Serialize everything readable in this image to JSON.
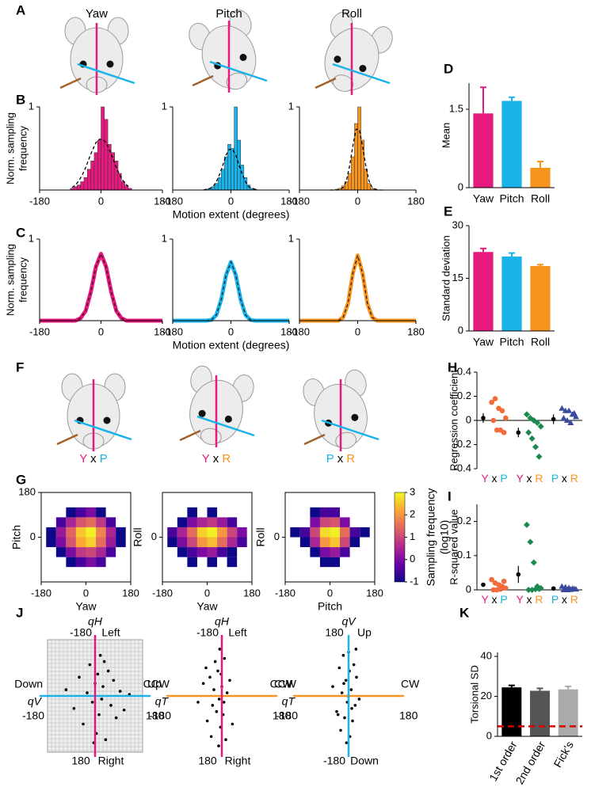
{
  "figure": {
    "panel_letters": [
      "A",
      "B",
      "C",
      "D",
      "E",
      "F",
      "G",
      "H",
      "I",
      "J",
      "K"
    ],
    "head_titles": [
      "Yaw",
      "Pitch",
      "Roll"
    ],
    "head_colors": [
      "#e6197f",
      "#19b3ea",
      "#f7941e"
    ],
    "pair_titles": [
      "Y x P",
      "Y x R",
      "P x R"
    ],
    "letter_colors": {
      "Y": "#e6197f",
      "P": "#19b3ea",
      "R": "#f7941e"
    }
  },
  "chart_data": [
    {
      "type": "histogram",
      "color": "#e6197f",
      "ylabel": [
        "Norm. sampling",
        "frequency"
      ],
      "bins": [
        -90,
        -80,
        -70,
        -60,
        -50,
        -40,
        -30,
        -20,
        -10,
        0,
        10,
        20,
        30,
        40,
        50,
        60,
        70,
        80,
        90
      ],
      "values": [
        0.02,
        0.04,
        0.06,
        0.1,
        0.15,
        0.25,
        0.35,
        0.45,
        0.6,
        1,
        0.85,
        0.55,
        0.45,
        0.35,
        0.2,
        0.1,
        0.05,
        0.02
      ],
      "fit": [
        0.03,
        0.06,
        0.11,
        0.18,
        0.27,
        0.38,
        0.48,
        0.57,
        0.61,
        0.61,
        0.57,
        0.48,
        0.38,
        0.27,
        0.18,
        0.11,
        0.06,
        0.03
      ],
      "xlim": [
        -180,
        180
      ],
      "xticks": [
        -180,
        0,
        180
      ],
      "ylim": [
        0,
        1
      ],
      "yticks": [
        1
      ]
    },
    {
      "type": "histogram",
      "color": "#19b3ea",
      "xlabel": "Motion extent (degrees)",
      "bins": [
        -90,
        -80,
        -70,
        -60,
        -50,
        -40,
        -30,
        -20,
        -10,
        0,
        10,
        20,
        30,
        40,
        50,
        60,
        70,
        80,
        90
      ],
      "values": [
        0,
        0.01,
        0.02,
        0.04,
        0.08,
        0.15,
        0.25,
        0.4,
        0.55,
        0.5,
        1,
        0.6,
        0.3,
        0.15,
        0.06,
        0.02,
        0.01,
        0
      ],
      "fit": [
        0,
        0.01,
        0.02,
        0.04,
        0.1,
        0.19,
        0.3,
        0.42,
        0.49,
        0.49,
        0.42,
        0.3,
        0.19,
        0.1,
        0.04,
        0.02,
        0.01,
        0
      ],
      "xlim": [
        -180,
        180
      ],
      "xticks": [
        -180,
        0,
        180
      ],
      "ylim": [
        0,
        1
      ],
      "yticks": [
        1
      ]
    },
    {
      "type": "histogram",
      "color": "#f7941e",
      "bins": [
        -90,
        -80,
        -70,
        -60,
        -50,
        -40,
        -30,
        -20,
        -10,
        0,
        10,
        20,
        30,
        40,
        50,
        60,
        70,
        80,
        90
      ],
      "values": [
        0,
        0,
        0.01,
        0.02,
        0.05,
        0.1,
        0.2,
        0.4,
        0.8,
        1,
        0.6,
        0.25,
        0.08,
        0.02,
        0.01,
        0,
        0,
        0
      ],
      "fit": [
        0,
        0,
        0,
        0.01,
        0.03,
        0.11,
        0.29,
        0.53,
        0.73,
        0.73,
        0.53,
        0.29,
        0.11,
        0.03,
        0.01,
        0,
        0,
        0
      ],
      "xlim": [
        -180,
        180
      ],
      "xticks": [
        -180,
        0,
        180
      ],
      "ylim": [
        0,
        1
      ],
      "yticks": [
        1
      ]
    },
    {
      "type": "line",
      "color": "#e6197f",
      "ylabel": [
        "Norm. sampling",
        "frequency"
      ],
      "x": [
        -180,
        -90,
        -75,
        -60,
        -45,
        -30,
        -15,
        0,
        15,
        30,
        45,
        60,
        75,
        90,
        180
      ],
      "values": [
        0,
        0,
        0,
        0.03,
        0.12,
        0.35,
        0.66,
        0.82,
        0.66,
        0.35,
        0.12,
        0.03,
        0,
        0,
        0
      ],
      "xlim": [
        -180,
        180
      ],
      "xticks": [
        -180,
        0,
        180
      ],
      "ylim": [
        0,
        1
      ],
      "yticks": [
        1
      ]
    },
    {
      "type": "line",
      "color": "#19b3ea",
      "xlabel": "Motion extent (degrees)",
      "x": [
        -180,
        -90,
        -75,
        -60,
        -45,
        -30,
        -15,
        0,
        15,
        30,
        45,
        60,
        75,
        90,
        180
      ],
      "values": [
        0,
        0,
        0,
        0.01,
        0.07,
        0.26,
        0.56,
        0.72,
        0.56,
        0.26,
        0.07,
        0.01,
        0,
        0,
        0
      ],
      "xlim": [
        -180,
        180
      ],
      "xticks": [
        -180,
        0,
        180
      ],
      "ylim": [
        0,
        1
      ],
      "yticks": [
        1
      ]
    },
    {
      "type": "line",
      "color": "#f7941e",
      "x": [
        -180,
        -90,
        -75,
        -60,
        -45,
        -30,
        -15,
        0,
        15,
        30,
        45,
        60,
        75,
        90,
        180
      ],
      "values": [
        0,
        0,
        0,
        0,
        0.04,
        0.21,
        0.58,
        0.8,
        0.58,
        0.21,
        0.04,
        0,
        0,
        0,
        0
      ],
      "xlim": [
        -180,
        180
      ],
      "xticks": [
        -180,
        0,
        180
      ],
      "ylim": [
        0,
        1
      ],
      "yticks": [
        1
      ]
    },
    {
      "type": "bar",
      "ylabel": "Mean",
      "categories": [
        "Yaw",
        "Pitch",
        "Roll"
      ],
      "values": [
        1.42,
        1.66,
        0.38
      ],
      "errors": [
        0.5,
        0.07,
        0.12
      ],
      "colors": [
        "#e6197f",
        "#19b3ea",
        "#f7941e"
      ],
      "ylim": [
        0,
        2
      ],
      "yticks": [
        0,
        1.5
      ]
    },
    {
      "type": "bar",
      "ylabel": "Standard deviation",
      "categories": [
        "Yaw",
        "Pitch",
        "Roll"
      ],
      "values": [
        22.5,
        21.2,
        18.5
      ],
      "errors": [
        1,
        1,
        0.4
      ],
      "colors": [
        "#e6197f",
        "#19b3ea",
        "#f7941e"
      ],
      "ylim": [
        0,
        30
      ],
      "yticks": [
        0,
        15,
        30
      ]
    },
    {
      "type": "heatmap",
      "xlabel": "Yaw",
      "ylabel": "Pitch",
      "xlabel_color": "#e6197f",
      "ylabel_color": "#19b3ea",
      "xbins": [
        -160,
        -120,
        -80,
        -40,
        0,
        40,
        80,
        120,
        160
      ],
      "ybins": [
        -160,
        -120,
        -80,
        -40,
        0,
        40,
        80,
        120,
        160
      ],
      "z": [
        [
          null,
          null,
          null,
          null,
          null,
          null,
          null,
          null
        ],
        [
          null,
          null,
          -1,
          -0.5,
          0,
          -0.5,
          null,
          null
        ],
        [
          null,
          -1,
          0,
          0.8,
          1,
          0.5,
          -0.5,
          null
        ],
        [
          -1,
          0,
          1.2,
          2.2,
          2.6,
          1.5,
          0.3,
          -1
        ],
        [
          -1,
          0.3,
          1.4,
          2.5,
          2.9,
          1.8,
          0.5,
          -1
        ],
        [
          null,
          -0.5,
          0.5,
          1.2,
          1.5,
          0.8,
          -0.5,
          null
        ],
        [
          null,
          null,
          -1,
          -0.5,
          0,
          -1,
          null,
          null
        ],
        [
          null,
          null,
          null,
          null,
          null,
          null,
          null,
          null
        ]
      ],
      "xlim": [
        -180,
        180
      ],
      "ylim": [
        -180,
        180
      ],
      "xticks": [
        -180,
        0,
        180
      ],
      "yticks": [
        0,
        180
      ],
      "colormap": [
        "#0d0887",
        "#6a00a8",
        "#b12a90",
        "#e16462",
        "#fca636",
        "#f0f921"
      ],
      "clim": [
        -1,
        3
      ]
    },
    {
      "type": "heatmap",
      "xlabel": "Yaw",
      "ylabel": "Roll",
      "xlabel_color": "#e6197f",
      "ylabel_color": "#f7941e",
      "xbins": [
        -160,
        -120,
        -80,
        -40,
        0,
        40,
        80,
        120,
        160
      ],
      "ybins": [
        -160,
        -120,
        -80,
        -40,
        0,
        40,
        80,
        120,
        160
      ],
      "z": [
        [
          null,
          null,
          null,
          null,
          null,
          null,
          null,
          null
        ],
        [
          null,
          null,
          -1,
          null,
          -1,
          null,
          -1,
          null
        ],
        [
          null,
          -1,
          -0.5,
          0,
          0.3,
          -0.5,
          -1,
          null
        ],
        [
          -1,
          0,
          1,
          2,
          2.4,
          1.5,
          0.5,
          -0.5
        ],
        [
          -0.5,
          0.5,
          1.5,
          2.6,
          2.9,
          2,
          1,
          0
        ],
        [
          null,
          -1,
          0,
          0.5,
          0.8,
          0.3,
          -0.5,
          null
        ],
        [
          null,
          null,
          -1,
          null,
          -1,
          null,
          null,
          null
        ],
        [
          null,
          null,
          null,
          null,
          null,
          null,
          null,
          null
        ]
      ],
      "xlim": [
        -180,
        180
      ],
      "ylim": [
        -180,
        180
      ],
      "xticks": [
        -180,
        0,
        180
      ],
      "yticks": [
        0
      ],
      "colormap": [
        "#0d0887",
        "#6a00a8",
        "#b12a90",
        "#e16462",
        "#fca636",
        "#f0f921"
      ],
      "clim": [
        -1,
        3
      ]
    },
    {
      "type": "heatmap",
      "xlabel": "Pitch",
      "ylabel": "Roll",
      "xlabel_color": "#19b3ea",
      "ylabel_color": "#f7941e",
      "xbins": [
        -160,
        -120,
        -80,
        -40,
        0,
        40,
        80,
        120,
        160
      ],
      "ybins": [
        -160,
        -120,
        -80,
        -40,
        0,
        40,
        80,
        120,
        160
      ],
      "z": [
        [
          null,
          null,
          null,
          null,
          null,
          null,
          null,
          null
        ],
        [
          null,
          null,
          null,
          -1,
          -1,
          null,
          null,
          null
        ],
        [
          null,
          null,
          -1,
          0,
          0.3,
          -0.5,
          null,
          null
        ],
        [
          null,
          -1,
          0.5,
          2,
          2.5,
          1,
          -1,
          null
        ],
        [
          -1,
          -0.5,
          1,
          2.7,
          2.9,
          1.5,
          -0.5,
          -1
        ],
        [
          null,
          null,
          0,
          1,
          1.2,
          0,
          null,
          null
        ],
        [
          null,
          null,
          -1,
          -0.5,
          -0.5,
          null,
          null,
          null
        ],
        [
          null,
          null,
          null,
          null,
          null,
          null,
          null,
          null
        ]
      ],
      "xlim": [
        -180,
        180
      ],
      "ylim": [
        -180,
        180
      ],
      "xticks": [
        -180,
        0,
        180
      ],
      "yticks": [
        0
      ],
      "colormap": [
        "#0d0887",
        "#6a00a8",
        "#b12a90",
        "#e16462",
        "#fca636",
        "#f0f921"
      ],
      "clim": [
        -1,
        3
      ],
      "cticks": [
        -1,
        0,
        1,
        2,
        3
      ],
      "clabel": [
        "Sampling frequency",
        "(log10)"
      ]
    },
    {
      "type": "strip",
      "ylabel": "Regression coefficient",
      "categories": [
        "Y x P",
        "Y x R",
        "P x R"
      ],
      "means": [
        0.02,
        -0.1,
        0.01
      ],
      "errors": [
        0.04,
        0.04,
        0.04
      ],
      "points": [
        [
          0.15,
          0.18,
          0.1,
          0.08,
          0.02,
          0,
          -0.08,
          -0.08,
          -0.1
        ],
        [
          0.05,
          0.02,
          0,
          -0.02,
          -0.05,
          -0.1,
          -0.15,
          -0.22,
          -0.3
        ],
        [
          0.1,
          0.08,
          0.08,
          0.05,
          0.03,
          0.02,
          0,
          -0.02,
          0.06
        ]
      ],
      "point_colors": [
        "#f26b3a",
        "#1a8a4f",
        "#3a4aa0"
      ],
      "markers": [
        "circle",
        "diamond",
        "triangle"
      ],
      "ylim": [
        -0.4,
        0.4
      ],
      "yticks": [
        -0.4,
        -0.2,
        0,
        0.2,
        0.4
      ]
    },
    {
      "type": "strip",
      "ylabel": "R-squared value",
      "categories": [
        "Y x P",
        "Y x R",
        "P x R"
      ],
      "means": [
        0.015,
        0.045,
        0.004
      ],
      "errors": [
        0.005,
        0.025,
        0.002
      ],
      "points": [
        [
          0.03,
          0.02,
          0.015,
          0.01,
          0.005,
          0,
          0,
          0.002,
          0.025
        ],
        [
          0.19,
          0.14,
          0.08,
          0.01,
          0.005,
          0,
          0,
          0.002,
          0.003
        ],
        [
          0.01,
          0.008,
          0.006,
          0.004,
          0.002,
          0,
          0,
          0.001,
          0.003
        ]
      ],
      "point_colors": [
        "#f26b3a",
        "#1a8a4f",
        "#3a4aa0"
      ],
      "markers": [
        "circle",
        "diamond",
        "triangle"
      ],
      "ylim": [
        0,
        0.25
      ],
      "yticks": [
        0,
        0.1,
        0.2
      ]
    },
    {
      "type": "scatter",
      "grid": true,
      "h_color": "#19b3ea",
      "v_color": "#e6197f",
      "labels": {
        "top_label": "qH",
        "top_tick": "-180",
        "top_dir": "Left",
        "bottom_tick": "180",
        "bottom_dir": "Right",
        "left_dir": "Down",
        "left_label": "qV",
        "left_tick": "-180",
        "right_dir": "Up",
        "right_tick": "180"
      },
      "x": [
        -110,
        -80,
        -60,
        -45,
        -30,
        -20,
        -10,
        0,
        5,
        10,
        15,
        20,
        25,
        30,
        40,
        50,
        60,
        70,
        80,
        95,
        110,
        -5,
        35,
        130
      ],
      "y": [
        20,
        -40,
        60,
        -90,
        10,
        100,
        -20,
        40,
        -120,
        70,
        -60,
        130,
        -10,
        30,
        -140,
        80,
        -30,
        50,
        -70,
        15,
        -45,
        -150,
        110,
        5
      ],
      "xlim": [
        -180,
        180
      ],
      "ylim": [
        -180,
        180
      ]
    },
    {
      "type": "scatter",
      "grid": false,
      "h_color": "#f7941e",
      "v_color": "#e6197f",
      "labels": {
        "top_label": "qH",
        "top_tick": "-180",
        "top_dir": "Left",
        "bottom_tick": "180",
        "bottom_dir": "Right",
        "left_dir": "CCW",
        "left_label": "qT",
        "left_tick": "-180",
        "right_dir": "CW",
        "right_tick": "180"
      },
      "x": [
        -90,
        -70,
        -55,
        -45,
        -40,
        -30,
        -25,
        -20,
        -15,
        -10,
        -8,
        -5,
        0,
        5,
        10,
        15,
        20,
        -35,
        -60,
        30,
        40,
        -12,
        -3,
        8
      ],
      "y": [
        -20,
        40,
        -80,
        60,
        -130,
        20,
        110,
        -50,
        80,
        -10,
        150,
        -100,
        30,
        -60,
        120,
        -140,
        10,
        -30,
        90,
        50,
        -90,
        -160,
        70,
        -20
      ],
      "xlim": [
        -180,
        180
      ],
      "ylim": [
        -180,
        180
      ]
    },
    {
      "type": "scatter",
      "grid": false,
      "h_color": "#f7941e",
      "v_color": "#19b3ea",
      "labels": {
        "top_label": "qV",
        "top_tick": "180",
        "top_dir": "Up",
        "bottom_tick": "-180",
        "bottom_dir": "Down",
        "left_dir": "CCW",
        "left_label": "qT",
        "left_tick": "-180",
        "right_dir": "CW",
        "right_tick": "180"
      },
      "x": [
        -60,
        -45,
        -35,
        -30,
        -25,
        -20,
        -15,
        -10,
        -5,
        0,
        5,
        10,
        15,
        20,
        25,
        30,
        40,
        -40,
        -8,
        3,
        12,
        -18,
        28,
        -2
      ],
      "y": [
        30,
        -50,
        90,
        -110,
        10,
        130,
        -70,
        50,
        -20,
        140,
        -130,
        20,
        -80,
        100,
        -30,
        60,
        -10,
        -60,
        -150,
        80,
        -40,
        40,
        150,
        0
      ],
      "xlim": [
        -180,
        180
      ],
      "ylim": [
        -180,
        180
      ]
    },
    {
      "type": "bar",
      "ylabel": "Torsional SD",
      "categories": [
        "1st order",
        "2nd order",
        "Fick's"
      ],
      "values": [
        24.5,
        22.8,
        23.5
      ],
      "errors": [
        1,
        1.2,
        1.5
      ],
      "colors": [
        "#000000",
        "#555555",
        "#aaaaaa"
      ],
      "ylim": [
        0,
        42
      ],
      "yticks": [
        0,
        20,
        40
      ],
      "reference_line": 5,
      "reference_color": "#e00000",
      "rotate_labels": true
    }
  ]
}
